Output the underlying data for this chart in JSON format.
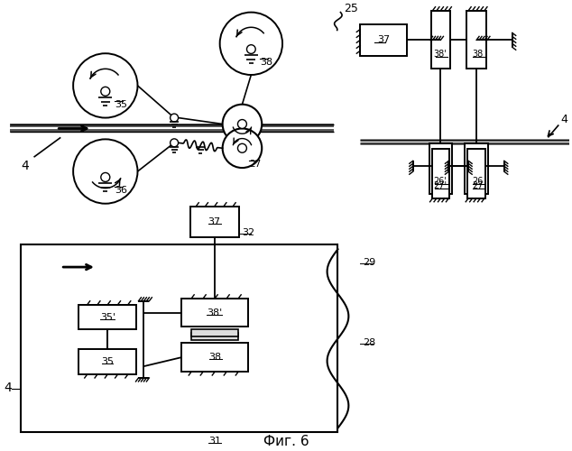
{
  "bg_color": "#ffffff",
  "lc": "#000000",
  "fig_label": "Фиг. 6"
}
